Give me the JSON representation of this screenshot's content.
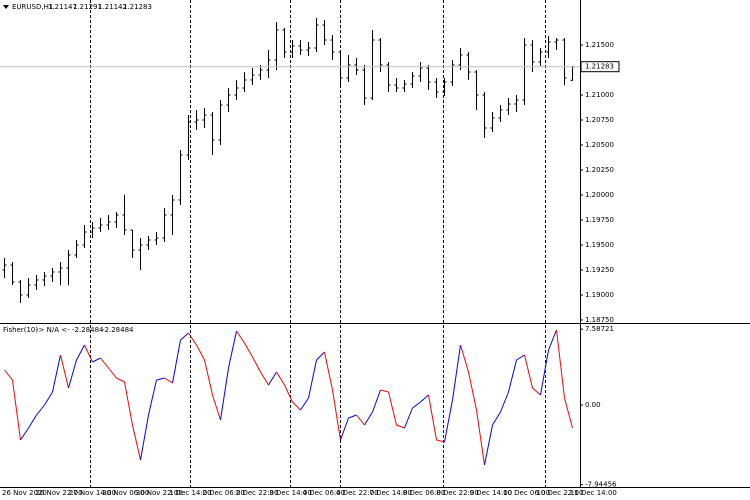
{
  "chart_data": [
    {
      "type": "ohlc",
      "title": "EURUSD,H1",
      "color": "#000000",
      "grid": false,
      "open": [
        1.1925,
        1.193,
        1.1913,
        1.19,
        1.191,
        1.1915,
        1.1919,
        1.1923,
        1.1927,
        1.194,
        1.195,
        1.1963,
        1.1967,
        1.197,
        1.1973,
        1.198,
        1.1965,
        1.1945,
        1.195,
        1.1955,
        1.1957,
        1.198,
        1.1995,
        1.204,
        1.2073,
        1.2075,
        1.208,
        1.2055,
        1.209,
        1.21,
        1.2107,
        1.2115,
        1.212,
        1.2125,
        1.2135,
        1.2165,
        1.2143,
        1.2149,
        1.2145,
        1.2147,
        1.217,
        1.2155,
        1.2143,
        1.2117,
        1.213,
        1.2125,
        1.2097,
        1.2155,
        1.213,
        1.211,
        1.2107,
        1.2111,
        1.2119,
        1.2127,
        1.2113,
        1.2103,
        1.2113,
        1.213,
        1.214,
        1.2123,
        1.21,
        1.2067,
        1.2077,
        1.2085,
        1.2091,
        1.2095,
        1.215,
        1.2133,
        1.2143,
        1.2153,
        1.2155,
        1.21147
      ],
      "high": [
        1.1937,
        1.1933,
        1.1915,
        1.1917,
        1.192,
        1.1923,
        1.1927,
        1.1933,
        1.1945,
        1.1955,
        1.197,
        1.1973,
        1.1977,
        1.198,
        1.1983,
        1.2,
        1.1965,
        1.1957,
        1.1959,
        1.1963,
        1.1987,
        1.2,
        1.2045,
        1.208,
        1.2085,
        1.2087,
        1.2083,
        1.2095,
        1.2107,
        1.2115,
        1.2123,
        1.2127,
        1.213,
        1.2145,
        1.2173,
        1.2167,
        1.2155,
        1.2155,
        1.2153,
        1.2177,
        1.2175,
        1.216,
        1.2145,
        1.214,
        1.2137,
        1.213,
        1.2165,
        1.2157,
        1.2133,
        1.2117,
        1.2115,
        1.2123,
        1.2133,
        1.213,
        1.2117,
        1.2117,
        1.2135,
        1.2147,
        1.2143,
        1.2125,
        1.2103,
        1.2083,
        1.209,
        1.2097,
        1.21,
        1.2157,
        1.2155,
        1.2147,
        1.2159,
        1.2157,
        1.2157,
        1.21291
      ],
      "low": [
        1.1917,
        1.191,
        1.1892,
        1.1897,
        1.1905,
        1.1909,
        1.1913,
        1.191,
        1.191,
        1.1937,
        1.1947,
        1.1957,
        1.1963,
        1.1965,
        1.1967,
        1.196,
        1.1937,
        1.1925,
        1.1945,
        1.195,
        1.1953,
        1.196,
        1.199,
        1.2035,
        1.2065,
        1.2067,
        1.204,
        1.205,
        1.2083,
        1.2095,
        1.2103,
        1.211,
        1.2115,
        1.2117,
        1.2125,
        1.2137,
        1.2137,
        1.214,
        1.2139,
        1.2143,
        1.215,
        1.2135,
        1.2107,
        1.2113,
        1.212,
        1.209,
        1.2095,
        1.2123,
        1.2103,
        1.2103,
        1.2103,
        1.2107,
        1.2113,
        1.2105,
        1.2097,
        1.2099,
        1.2109,
        1.2125,
        1.2115,
        1.2085,
        1.2057,
        1.2063,
        1.2073,
        1.208,
        1.2083,
        1.209,
        1.2123,
        1.2129,
        1.2137,
        1.2145,
        1.211,
        1.21142
      ],
      "close": [
        1.193,
        1.1913,
        1.19,
        1.191,
        1.1915,
        1.1919,
        1.1923,
        1.1927,
        1.194,
        1.195,
        1.1963,
        1.1967,
        1.197,
        1.1973,
        1.198,
        1.1965,
        1.1945,
        1.195,
        1.1955,
        1.1957,
        1.198,
        1.1995,
        1.204,
        1.2073,
        1.2075,
        1.208,
        1.2055,
        1.209,
        1.21,
        1.2107,
        1.2115,
        1.212,
        1.2125,
        1.2135,
        1.2165,
        1.2143,
        1.2149,
        1.2145,
        1.2147,
        1.217,
        1.2155,
        1.2143,
        1.2117,
        1.213,
        1.2125,
        1.2097,
        1.2155,
        1.213,
        1.211,
        1.2107,
        1.2111,
        1.2119,
        1.2127,
        1.2113,
        1.2103,
        1.2113,
        1.213,
        1.214,
        1.2123,
        1.21,
        1.2067,
        1.2077,
        1.2085,
        1.2091,
        1.2095,
        1.215,
        1.2133,
        1.2143,
        1.2153,
        1.2155,
        1.2117,
        1.21283
      ],
      "ylim": [
        1.1873,
        1.2195
      ],
      "yticks": [
        {
          "value": 1.215,
          "label": "1.21500"
        },
        {
          "value": 1.21,
          "label": "1.21000"
        },
        {
          "value": 1.2075,
          "label": "1.20750"
        },
        {
          "value": 1.205,
          "label": "1.20500"
        },
        {
          "value": 1.2025,
          "label": "1.20250"
        },
        {
          "value": 1.2,
          "label": "1.20000"
        },
        {
          "value": 1.1975,
          "label": "1.19750"
        },
        {
          "value": 1.195,
          "label": "1.19500"
        },
        {
          "value": 1.1925,
          "label": "1.19250"
        },
        {
          "value": 1.19,
          "label": "1.19000"
        },
        {
          "value": 1.1875,
          "label": "1.18750"
        }
      ],
      "current_price_color": "#c0c0c0"
    },
    {
      "type": "line",
      "title": "Fisher(10)",
      "status": "-> N/A <-",
      "values": [
        3.5,
        2.5,
        -3.5,
        -2.3,
        -1.0,
        0.0,
        1.3,
        5.0,
        1.7,
        4.5,
        6.0,
        4.3,
        4.7,
        3.7,
        2.7,
        2.3,
        -2.0,
        -5.5,
        -1.0,
        2.5,
        2.7,
        2.2,
        6.5,
        7.2,
        6.0,
        4.5,
        1.0,
        -1.5,
        3.7,
        7.4,
        6.2,
        4.8,
        3.3,
        2.0,
        3.3,
        2.0,
        0.3,
        -0.5,
        0.7,
        4.5,
        5.3,
        1.5,
        -3.5,
        -1.3,
        -1.0,
        -2.0,
        -0.7,
        1.5,
        1.3,
        -2.0,
        -2.3,
        -0.3,
        0.3,
        1.0,
        -3.5,
        -3.7,
        0.5,
        6.0,
        3.3,
        -0.5,
        -6.0,
        -2.0,
        -0.7,
        1.3,
        4.5,
        5.0,
        1.7,
        1.0,
        5.5,
        7.5,
        0.7,
        -2.28484
      ],
      "up_color": "#0000ff",
      "down_color": "#ff0000",
      "ylim": [
        -8.1,
        7.9
      ],
      "yticks": [
        7.58721,
        {
          "value": 0,
          "label": "0.00"
        },
        -7.94456
      ]
    }
  ],
  "time_axis": {
    "labels": [
      "26 Nov 2020",
      "26 Nov 22:00",
      "27 Nov 14:00",
      "30 Nov 06:00",
      "30 Nov 22:00",
      "1 Dec 14:00",
      "2 Dec 06:00",
      "2 Dec 22:00",
      "3 Dec 14:00",
      "4 Dec 06:00",
      "4 Dec 22:00",
      "7 Dec 14:00",
      "8 Dec 06:00",
      "8 Dec 22:00",
      "9 Dec 14:00",
      "10 Dec 06:00",
      "10 Dec 22:00",
      "11 Dec 14:00"
    ]
  }
}
